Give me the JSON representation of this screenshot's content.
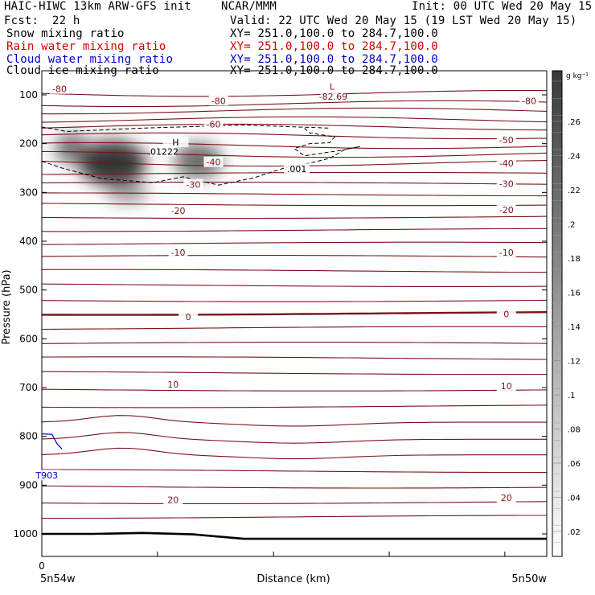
{
  "header": {
    "title": "HAIC-HIWC 13km ARW-GFS init",
    "org": "NCAR/MMM",
    "init": "Init: 00 UTC Wed 20 May 15",
    "fcst_label": "Fcst:",
    "fcst_value": "22 h",
    "valid": "Valid: 22 UTC Wed 20 May 15 (19 LST Wed 20 May 15)"
  },
  "fields": [
    {
      "name": "Snow mixing ratio",
      "xy": "XY= 251.0,100.0 to 284.7,100.0",
      "color": "#000000"
    },
    {
      "name": "Rain water mixing ratio",
      "xy": "XY= 251.0,100.0 to 284.7,100.0",
      "color": "#d40000"
    },
    {
      "name": "Cloud water mixing ratio",
      "xy": "XY= 251.0,100.0 to 284.7,100.0",
      "color": "#0000c8"
    },
    {
      "name": "Cloud ice mixing ratio",
      "xy": "XY= 251.0,100.0 to 284.7,100.0",
      "color": "#000000"
    }
  ],
  "colorbar": {
    "unit": "g kg⁻¹",
    "labels": [
      ".26",
      ".24",
      ".22",
      ".2",
      ".18",
      ".16",
      ".14",
      ".12",
      ".1",
      ".08",
      ".06",
      ".04",
      ".02"
    ]
  },
  "chart_data": {
    "type": "heatmap",
    "title": "",
    "xlabel": "Distance (km)",
    "ylabel": "Pressure (hPa)",
    "x_tick_labels": [
      "0"
    ],
    "x_end_labels": [
      "5n54w",
      "5n50w"
    ],
    "y_ticks": [
      100,
      200,
      300,
      400,
      500,
      600,
      700,
      800,
      900,
      1000
    ],
    "ylim": [
      1050,
      20
    ],
    "temperature_contour_labels": [
      {
        "value": "-80",
        "p": 88,
        "frac": 0.035
      },
      {
        "value": "-80",
        "p": 112,
        "frac": 0.35
      },
      {
        "value": "-80",
        "p": 112,
        "frac": 0.965
      },
      {
        "value": "-60",
        "p": 160,
        "frac": 0.34
      },
      {
        "value": "-50",
        "p": 192,
        "frac": 0.92
      },
      {
        "value": "-40",
        "p": 238,
        "frac": 0.34
      },
      {
        "value": "-40",
        "p": 240,
        "frac": 0.92
      },
      {
        "value": "-30",
        "p": 284,
        "frac": 0.3
      },
      {
        "value": "-30",
        "p": 282,
        "frac": 0.92
      },
      {
        "value": "-20",
        "p": 337,
        "frac": 0.27
      },
      {
        "value": "-20",
        "p": 336,
        "frac": 0.92
      },
      {
        "value": "-10",
        "p": 423,
        "frac": 0.27
      },
      {
        "value": "-10",
        "p": 423,
        "frac": 0.92
      },
      {
        "value": "0",
        "p": 555,
        "frac": 0.29
      },
      {
        "value": "0",
        "p": 549,
        "frac": 0.92
      },
      {
        "value": "10",
        "p": 693,
        "frac": 0.26
      },
      {
        "value": "10",
        "p": 697,
        "frac": 0.92
      },
      {
        "value": "20",
        "p": 930,
        "frac": 0.26
      },
      {
        "value": "20",
        "p": 926,
        "frac": 0.92
      }
    ],
    "point_labels": [
      {
        "text": "H",
        "p": 197,
        "frac": 0.265
      },
      {
        "text": ".01222",
        "p": 216,
        "frac": 0.24
      },
      {
        "text": "L",
        "p": 83,
        "frac": 0.575
      },
      {
        "text": "-82.69",
        "p": 103,
        "frac": 0.577
      },
      {
        "text": ".001",
        "p": 252,
        "frac": 0.505
      },
      {
        "text": "T903",
        "p": 880,
        "frac": 0.01
      }
    ],
    "snow_max": 0.26,
    "ice_contour_value": ".001",
    "ice_max_value": ".01222"
  }
}
